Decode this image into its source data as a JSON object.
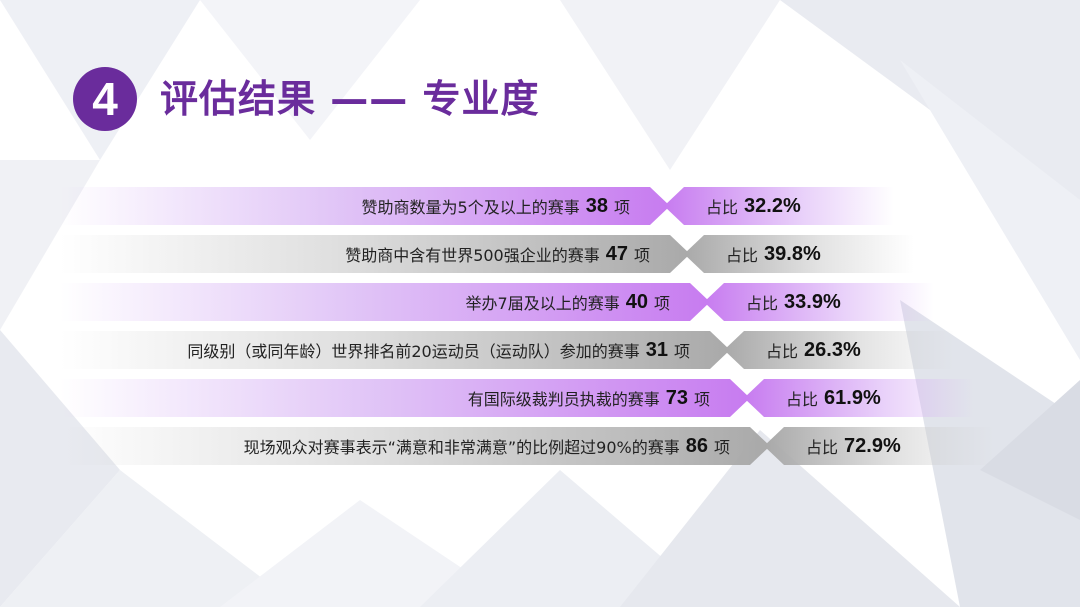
{
  "header": {
    "badge_number": "4",
    "title": "评估结果 —— 专业度"
  },
  "rows": [
    {
      "text": "赞助商数量为5个及以上的赛事",
      "count": "38",
      "unit": "项",
      "ratio_label": "占比",
      "ratio": "32.2%",
      "style": "purple"
    },
    {
      "text": "赞助商中含有世界500强企业的赛事",
      "count": "47",
      "unit": "项",
      "ratio_label": "占比",
      "ratio": "39.8%",
      "style": "gray"
    },
    {
      "text": "举办7届及以上的赛事",
      "count": "40",
      "unit": "项",
      "ratio_label": "占比",
      "ratio": "33.9%",
      "style": "purple"
    },
    {
      "text": "同级别（或同年龄）世界排名前20运动员（运动队）参加的赛事",
      "count": "31",
      "unit": "项",
      "ratio_label": "占比",
      "ratio": "26.3%",
      "style": "gray"
    },
    {
      "text": "有国际级裁判员执裁的赛事",
      "count": "73",
      "unit": "项",
      "ratio_label": "占比",
      "ratio": "61.9%",
      "style": "purple"
    },
    {
      "text": "现场观众对赛事表示“满意和非常满意”的比例超过90%的赛事",
      "count": "86",
      "unit": "项",
      "ratio_label": "占比",
      "ratio": "72.9%",
      "style": "gray"
    }
  ],
  "colors": {
    "accent": "#6a2c9c",
    "purple_bar": "#c77bf0",
    "gray_bar": "#a9a9a9"
  }
}
